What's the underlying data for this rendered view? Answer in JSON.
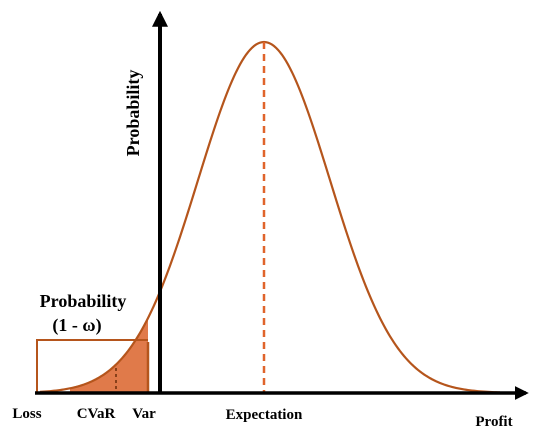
{
  "labels": {
    "y_axis": "Probability",
    "x_axis": "Profit",
    "loss": "Loss",
    "cvar": "CVaR",
    "var": "Var",
    "expectation": "Expectation",
    "tail_probability_line1": "Probability",
    "tail_probability_line2": "(1 -  ω)"
  },
  "colors": {
    "curve": "#b5551c",
    "tail_fill": "#e07a4a",
    "axis": "#000000",
    "text": "#000000"
  }
}
